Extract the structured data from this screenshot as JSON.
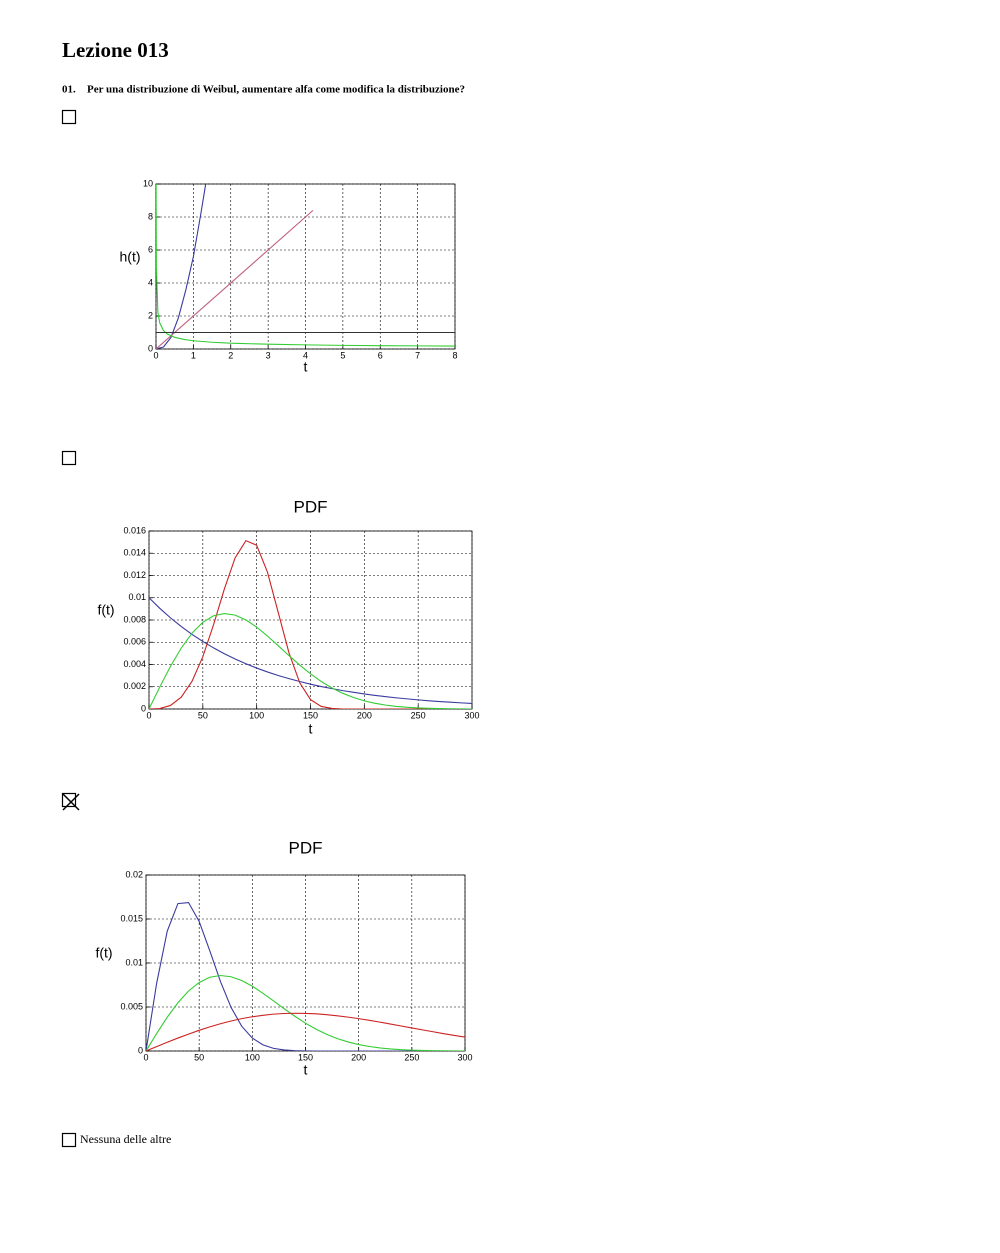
{
  "title": "Lezione 013",
  "question": {
    "number": "01.",
    "text": "Per una distribuzione di Weibul, aumentare alfa come modifica la distribuzione?"
  },
  "options": [
    {
      "checked": false,
      "chart_data": {
        "type": "line",
        "ylabel": "h(t)",
        "xlabel": "t",
        "xlim": [
          0,
          8
        ],
        "ylim": [
          0,
          10
        ],
        "xticks": [
          0,
          1,
          2,
          3,
          4,
          5,
          6,
          7,
          8
        ],
        "yticks": [
          0,
          2,
          4,
          6,
          8,
          10
        ],
        "grid": true,
        "series": [
          {
            "color": "#3a3aa0",
            "x": [
              0,
              0.2,
              0.4,
              0.6,
              0.8,
              1,
              1.2,
              1.33
            ],
            "values": [
              0,
              0.12,
              0.7,
              1.9,
              3.6,
              5.6,
              8.2,
              10
            ]
          },
          {
            "color": "#c06080",
            "x": [
              0,
              4.2
            ],
            "values": [
              0,
              8.4
            ]
          },
          {
            "color": "#33cc33",
            "x": [
              0.0025,
              0.01,
              0.05,
              0.1,
              0.2,
              0.3,
              0.5,
              0.75,
              1,
              1.5,
              2,
              3,
              4,
              5,
              6,
              7,
              8
            ],
            "values": [
              10,
              5,
              2.24,
              1.58,
              1.12,
              0.91,
              0.71,
              0.58,
              0.5,
              0.41,
              0.35,
              0.29,
              0.25,
              0.22,
              0.2,
              0.19,
              0.18
            ]
          },
          {
            "color": "#333333",
            "x": [
              0,
              8
            ],
            "values": [
              1,
              1
            ]
          }
        ]
      }
    },
    {
      "checked": false,
      "chart_data": {
        "type": "line",
        "title": "PDF",
        "ylabel": "f(t)",
        "xlabel": "t",
        "xlim": [
          0,
          300
        ],
        "ylim": [
          0,
          0.016
        ],
        "xticks": [
          0,
          50,
          100,
          150,
          200,
          250,
          300
        ],
        "yticks": [
          0,
          0.002,
          0.004,
          0.006,
          0.008,
          0.01,
          0.012,
          0.014,
          0.016
        ],
        "grid": true,
        "x": [
          0,
          10,
          20,
          30,
          40,
          50,
          60,
          70,
          80,
          90,
          100,
          110,
          120,
          130,
          140,
          150,
          160,
          170,
          180,
          190,
          200,
          210,
          220,
          230,
          240,
          250,
          260,
          270,
          280,
          290,
          300
        ],
        "series": [
          {
            "color": "#3a3aa0",
            "values": [
              0.01,
              0.00905,
              0.00819,
              0.00741,
              0.0067,
              0.00607,
              0.00549,
              0.00497,
              0.00449,
              0.00407,
              0.00368,
              0.00333,
              0.00301,
              0.00273,
              0.00247,
              0.00223,
              0.00202,
              0.00183,
              0.00165,
              0.0015,
              0.00135,
              0.00122,
              0.00111,
              0.001,
              0.00091,
              0.00082,
              0.00074,
              0.00067,
              0.00061,
              0.00055,
              0.0005
            ]
          },
          {
            "color": "#cc2222",
            "values": [
              0,
              4e-05,
              0.00032,
              0.00107,
              0.0025,
              0.0047,
              0.00759,
              0.01079,
              0.01359,
              0.01513,
              0.01472,
              0.01231,
              0.00869,
              0.00505,
              0.00236,
              0.00085,
              0.00023,
              5e-05,
              0,
              0,
              0,
              0,
              0,
              0,
              0,
              0,
              0,
              0,
              0,
              0,
              0
            ]
          },
          {
            "color": "#33cc33",
            "values": [
              0,
              0.00198,
              0.00384,
              0.00548,
              0.00682,
              0.00779,
              0.00838,
              0.00858,
              0.00844,
              0.00801,
              0.00736,
              0.00656,
              0.00569,
              0.0048,
              0.00395,
              0.00316,
              0.00247,
              0.00189,
              0.00141,
              0.00103,
              0.00073,
              0.00051,
              0.00035,
              0.00023,
              0.00015,
              0.0001,
              6e-05,
              4e-05,
              2e-05,
              1e-05,
              0
            ]
          }
        ]
      }
    },
    {
      "checked": true,
      "chart_data": {
        "type": "line",
        "title": "PDF",
        "ylabel": "f(t)",
        "xlabel": "t",
        "xlim": [
          0,
          300
        ],
        "ylim": [
          0,
          0.02
        ],
        "xticks": [
          0,
          50,
          100,
          150,
          200,
          250,
          300
        ],
        "yticks": [
          0,
          0.005,
          0.01,
          0.015,
          0.02
        ],
        "grid": true,
        "x": [
          0,
          10,
          20,
          30,
          40,
          50,
          60,
          70,
          80,
          90,
          100,
          110,
          120,
          130,
          140,
          150,
          160,
          170,
          180,
          190,
          200,
          210,
          220,
          230,
          240,
          250,
          260,
          270,
          280,
          290,
          300
        ],
        "series": [
          {
            "color": "#3a3aa0",
            "values": [
              0,
              0.00769,
              0.01363,
              0.01675,
              0.01687,
              0.01472,
              0.01138,
              0.0079,
              0.00495,
              0.00282,
              0.00147,
              0.0007,
              0.0003,
              0.00012,
              4e-05,
              1e-05,
              0,
              0,
              0,
              0,
              0,
              0,
              0,
              0,
              0,
              0,
              0,
              0,
              0,
              0,
              0
            ]
          },
          {
            "color": "#33cc33",
            "values": [
              0,
              0.00198,
              0.00384,
              0.00548,
              0.00682,
              0.00779,
              0.00838,
              0.00858,
              0.00844,
              0.00801,
              0.00736,
              0.00656,
              0.00569,
              0.0048,
              0.00395,
              0.00316,
              0.00247,
              0.00189,
              0.00141,
              0.00103,
              0.00073,
              0.00051,
              0.00035,
              0.00023,
              0.00015,
              0.0001,
              6e-05,
              4e-05,
              2e-05,
              1e-05,
              0
            ]
          },
          {
            "color": "#cc2222",
            "values": [
              0,
              0.0005,
              0.00099,
              0.00147,
              0.00192,
              0.00235,
              0.00274,
              0.0031,
              0.00341,
              0.00368,
              0.00389,
              0.00406,
              0.00419,
              0.00426,
              0.00429,
              0.00427,
              0.00422,
              0.00413,
              0.004,
              0.00385,
              0.00368,
              0.00349,
              0.00328,
              0.00306,
              0.00284,
              0.00262,
              0.0024,
              0.00219,
              0.00197,
              0.00177,
              0.00158
            ]
          }
        ]
      }
    },
    {
      "checked": false,
      "label": "Nessuna delle altre"
    }
  ]
}
